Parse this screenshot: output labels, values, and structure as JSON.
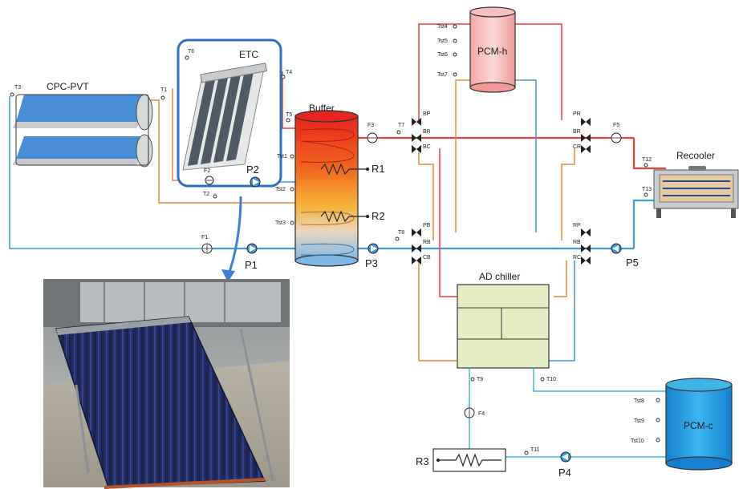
{
  "colors": {
    "hot": "#e8423f",
    "cold": "#3f9ad6",
    "mid": "#e68a3a",
    "dark": "#1f4f8f",
    "cyan": "#41b6e6",
    "pcm_h": "#f7c1bf",
    "pcm_c": "#1fa3e8",
    "chiller": "#e4ecc4",
    "etc_frame": "#2f6fbf"
  },
  "components": {
    "cpc_pvt": "CPC-PVT",
    "etc": "ETC",
    "buffer": "Buffer",
    "pcm_h": "PCM-h",
    "pcm_c": "PCM-c",
    "recooler": "Recooler",
    "ad_chiller": "AD chiller"
  },
  "pumps": {
    "p1": "P1",
    "p2": "P2",
    "p3": "P3",
    "p4": "P4",
    "p5": "P5"
  },
  "resistors": {
    "r1": "R1",
    "r2": "R2",
    "r3": "R3"
  },
  "flowmeters": {
    "f1": "F1",
    "f2": "F2",
    "f3": "F3",
    "f4": "F4",
    "f5": "F5"
  },
  "sensors": {
    "t1": "T1",
    "t2": "T2",
    "t3": "T3",
    "t4": "T4",
    "t5": "T5",
    "t6": "T6",
    "t7": "T7",
    "t8": "T8",
    "t9": "T9",
    "t10": "T10",
    "t11": "T11",
    "t12": "T12",
    "t13": "T13",
    "tst1": "Tst1",
    "tst2": "Tst2",
    "tst3": "Tst3",
    "tst4": "Tst4",
    "tst5": "Tst5",
    "tst6": "Tst6",
    "tst7": "Tst7",
    "tst8": "Tst8",
    "tst9": "Tst9",
    "tst10": "Tst10"
  },
  "valves": {
    "bp": "BP",
    "br": "BR",
    "bc": "BC",
    "pb": "PB",
    "rb": "RB",
    "cb": "CB",
    "pr": "PR",
    "br2": "BR",
    "cr": "CR",
    "rp": "RP",
    "rb2": "RB",
    "rc": "RC"
  },
  "photo": {
    "icon": "evacuated-tube-collector-photo"
  }
}
